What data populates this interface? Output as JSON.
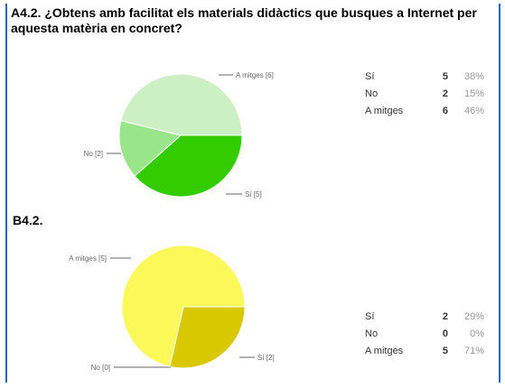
{
  "question_a": "A4.2. ¿Obtens amb facilitat els materials didàctics que busques a Internet per aquesta matèria en concret?",
  "heading_b": "B4.2.",
  "chart_data": [
    {
      "type": "pie",
      "id": "A4.2",
      "categories": [
        "Sí",
        "No",
        "A mitges"
      ],
      "values": [
        5,
        2,
        6
      ],
      "percentages": [
        "38%",
        "15%",
        "46%"
      ],
      "slice_labels": [
        "Sí [5]",
        "No [2]",
        "A mitges [6]"
      ],
      "colors": [
        "#33cc00",
        "#99e68a",
        "#ccf0c4"
      ]
    },
    {
      "type": "pie",
      "id": "B4.2",
      "categories": [
        "Sí",
        "No",
        "A mitges"
      ],
      "values": [
        2,
        0,
        5
      ],
      "percentages": [
        "29%",
        "0%",
        "71%"
      ],
      "slice_labels": [
        "Sí [2]",
        "No [0]",
        "A mitges [5]"
      ],
      "colors": [
        "#d9c700",
        "#c2b500",
        "#fbf85a"
      ]
    }
  ]
}
